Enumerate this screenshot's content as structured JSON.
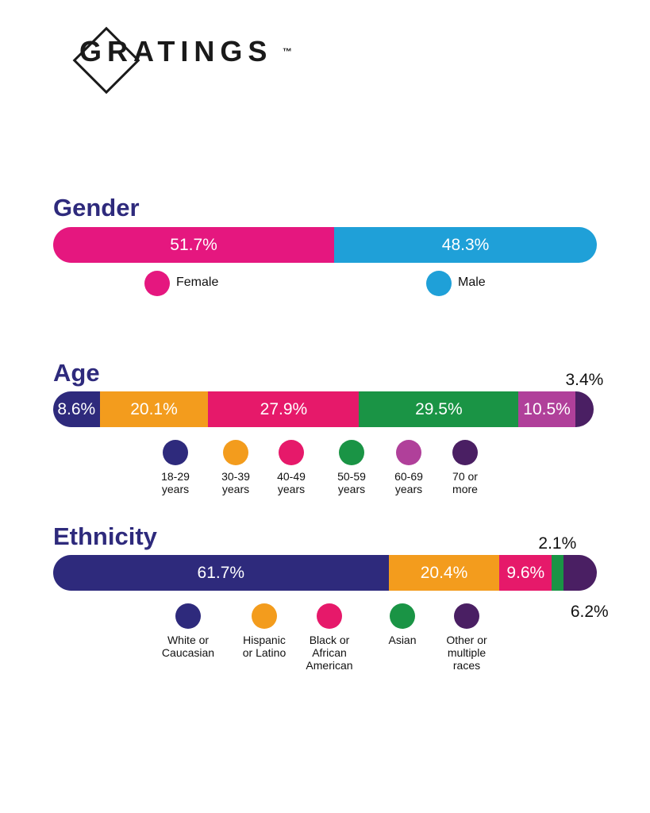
{
  "logo": "GRATINGS",
  "trademark": "™",
  "chart_data": [
    {
      "type": "stacked_bar",
      "title": "Gender",
      "categories": [
        "Female",
        "Male"
      ],
      "values": [
        51.7,
        48.3
      ],
      "value_labels": [
        "51.7%",
        "48.3%"
      ],
      "colors": [
        "#e5177f",
        "#1fa0d8"
      ]
    },
    {
      "type": "stacked_bar",
      "title": "Age",
      "categories": [
        "18-29 years",
        "30-39 years",
        "40-49 years",
        "50-59 years",
        "60-69 years",
        "70 or more"
      ],
      "values": [
        8.6,
        20.1,
        27.9,
        29.5,
        10.5,
        3.4
      ],
      "value_labels": [
        "8.6%",
        "20.1%",
        "27.9%",
        "29.5%",
        "10.5%",
        "3.4%"
      ],
      "colors": [
        "#2e2a7c",
        "#f39c1d",
        "#e6196a",
        "#1a9445",
        "#b0409a",
        "#4a1f63"
      ]
    },
    {
      "type": "stacked_bar",
      "title": "Ethnicity",
      "categories": [
        "White or Caucasian",
        "Hispanic or Latino",
        "Black or African American",
        "Asian",
        "Other or multiple races"
      ],
      "values": [
        61.7,
        20.4,
        9.6,
        2.1,
        6.2
      ],
      "value_labels": [
        "61.7%",
        "20.4%",
        "9.6%",
        "2.1%",
        "6.2%"
      ],
      "colors": [
        "#2e2a7c",
        "#f39c1d",
        "#e6196a",
        "#1a9445",
        "#4a1f63"
      ]
    }
  ]
}
